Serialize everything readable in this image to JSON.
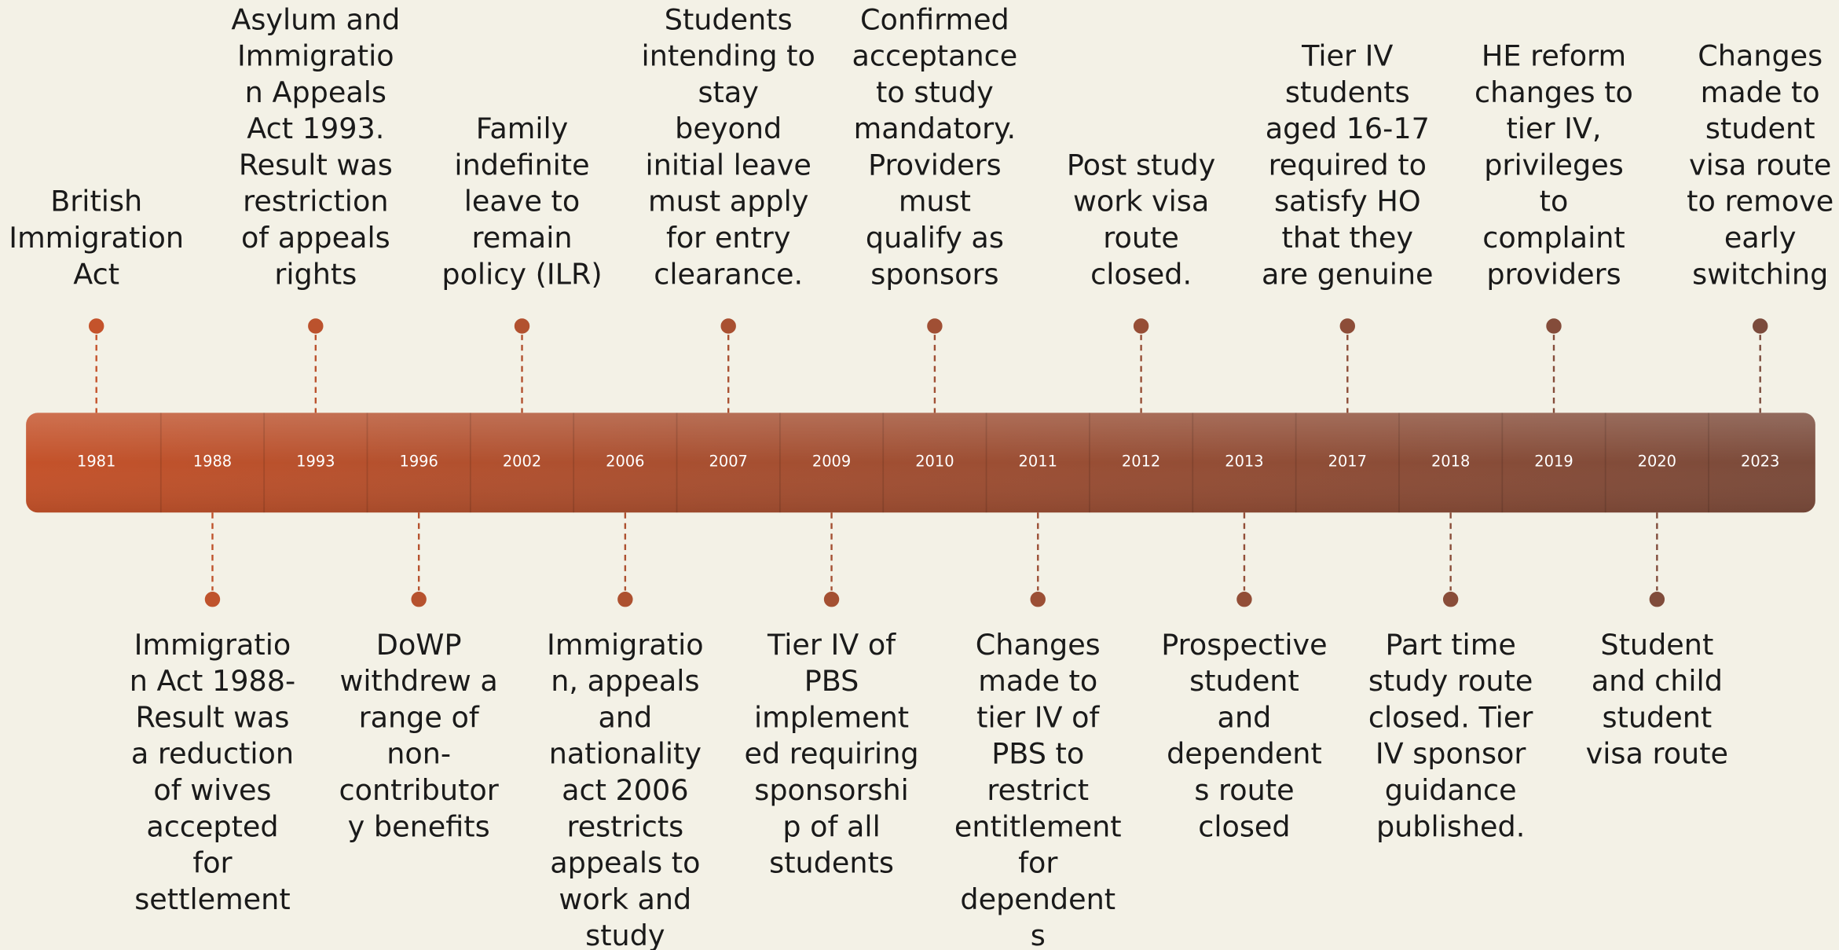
{
  "events": [
    {
      "year": "1981",
      "position": "above",
      "lines": [
        "British",
        "Immigration",
        "Act"
      ]
    },
    {
      "year": "1988",
      "position": "below",
      "lines": [
        "Immigratio",
        "n Act 1988-",
        "Result was",
        "a reduction",
        "of wives",
        "accepted",
        "for",
        "settlement"
      ]
    },
    {
      "year": "1993",
      "position": "above",
      "lines": [
        "Asylum and",
        "Immigratio",
        "n Appeals",
        "Act 1993.",
        "Result was",
        "restriction",
        "of appeals",
        "rights"
      ]
    },
    {
      "year": "1996",
      "position": "below",
      "lines": [
        "DoWP",
        "withdrew a",
        "range of",
        "non-",
        "contributor",
        "y benefits"
      ]
    },
    {
      "year": "2002",
      "position": "above",
      "lines": [
        "Family",
        "indefinite",
        "leave to",
        "remain",
        "policy (ILR)"
      ]
    },
    {
      "year": "2006",
      "position": "below",
      "lines": [
        "Immigratio",
        "n, appeals",
        "and",
        "nationality",
        "act 2006",
        "restricts",
        "appeals to",
        "work and",
        "study"
      ]
    },
    {
      "year": "2007",
      "position": "above",
      "lines": [
        "Students",
        "intending to",
        "stay",
        "beyond",
        "initial leave",
        "must apply",
        "for entry",
        "clearance."
      ]
    },
    {
      "year": "2009",
      "position": "below",
      "lines": [
        "Tier IV of",
        "PBS",
        "implement",
        "ed requiring",
        "sponsorshi",
        "p of all",
        "students"
      ]
    },
    {
      "year": "2010",
      "position": "above",
      "lines": [
        "Confirmed",
        "acceptance",
        "to study",
        "mandatory.",
        "Providers",
        "must",
        "qualify as",
        "sponsors"
      ]
    },
    {
      "year": "2011",
      "position": "below",
      "lines": [
        "Changes",
        "made to",
        "tier IV of",
        "PBS to",
        "restrict",
        "entitlement",
        "for",
        "dependent",
        "s"
      ]
    },
    {
      "year": "2012",
      "position": "above",
      "lines": [
        "Post study",
        "work visa",
        "route",
        "closed."
      ]
    },
    {
      "year": "2013",
      "position": "below",
      "lines": [
        "Prospective",
        "student",
        "and",
        "dependent",
        "s route",
        "closed"
      ]
    },
    {
      "year": "2017",
      "position": "above",
      "lines": [
        "Tier IV",
        "students",
        "aged 16-17",
        "required to",
        "satisfy HO",
        "that they",
        "are genuine"
      ]
    },
    {
      "year": "2018",
      "position": "below",
      "lines": [
        "Part time",
        "study route",
        "closed. Tier",
        "IV sponsor",
        "guidance",
        "published."
      ]
    },
    {
      "year": "2019",
      "position": "above",
      "lines": [
        "HE reform",
        "changes to",
        "tier IV,",
        "privileges",
        "to",
        "complaint",
        "providers"
      ]
    },
    {
      "year": "2020",
      "position": "below",
      "lines": [
        "Student",
        "and child",
        "student",
        "visa route"
      ]
    },
    {
      "year": "2023",
      "position": "above",
      "lines": [
        "Changes",
        "made to",
        "student",
        "visa route",
        "to remove",
        "early",
        "switching"
      ]
    }
  ]
}
